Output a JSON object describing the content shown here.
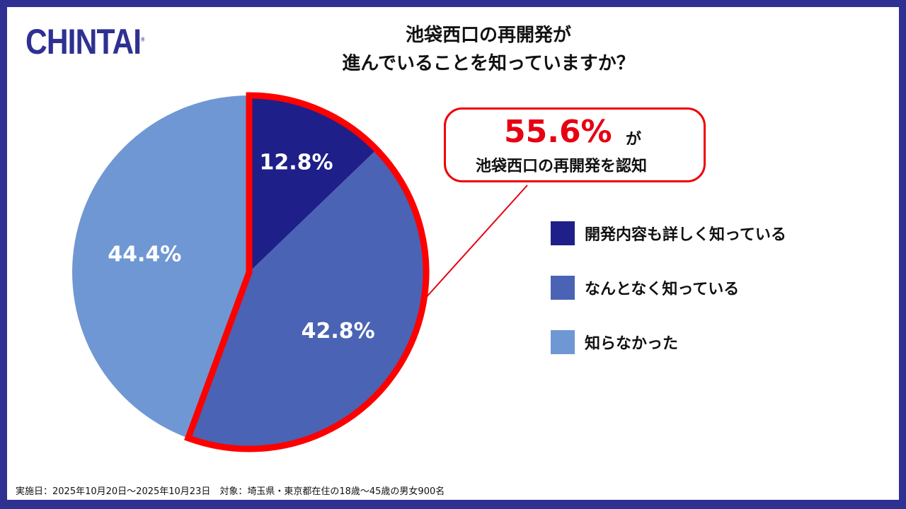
{
  "logo": {
    "text": "CHINTAI"
  },
  "title": {
    "line1": "池袋西口の再開発が",
    "line2": "進んでいることを知っていますか？"
  },
  "callout": {
    "percent": "55.6%",
    "particle": "が",
    "text": "池袋西口の再開発を認知"
  },
  "footer": "実施日：2025年10月20日～2025年10月23日　対象：埼玉県・東京都在住の18歳～45歳の男女900名",
  "colors": {
    "border": "#2e3192",
    "highlight": "#e60012"
  },
  "chart_data": {
    "type": "pie",
    "start": "12 o'clock, clockwise",
    "slices": [
      {
        "label": "開発内容も詳しく知っている",
        "value": 12.8,
        "display": "12.8%",
        "color": "#1f1f8a"
      },
      {
        "label": "なんとなく知っている",
        "value": 42.8,
        "display": "42.8%",
        "color": "#4a63b4"
      },
      {
        "label": "知らなかった",
        "value": 44.4,
        "display": "44.4%",
        "color": "#6f97d4"
      }
    ],
    "highlighted_slices": [
      "開発内容も詳しく知っている",
      "なんとなく知っている"
    ],
    "legend_placement": "right"
  }
}
